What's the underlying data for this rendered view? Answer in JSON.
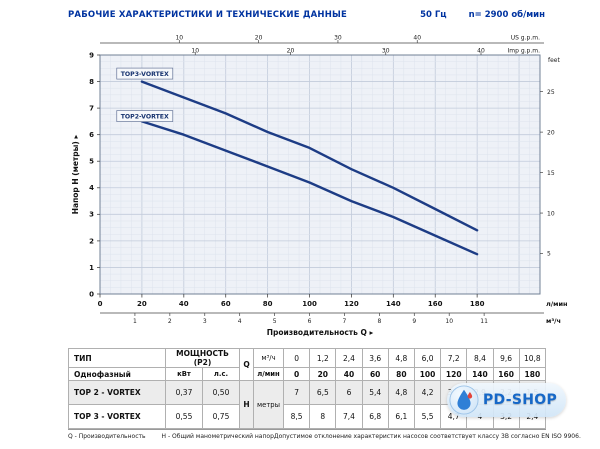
{
  "header": {
    "title": "РАБОЧИЕ ХАРАКТЕРИСТИКИ И ТЕХНИЧЕСКИЕ ДАННЫЕ",
    "frequency": "50 Гц",
    "speed": "n= 2900 об/мин"
  },
  "chart_data": {
    "type": "line",
    "x_lmin": [
      0,
      20,
      40,
      60,
      80,
      100,
      120,
      140,
      160,
      180
    ],
    "series": [
      {
        "name": "TOP3-VORTEX",
        "values": [
          8.5,
          8,
          7.4,
          6.8,
          6.1,
          5.5,
          4.7,
          4,
          3.2,
          2.4
        ],
        "label_at": [
          8,
          8.3
        ]
      },
      {
        "name": "TOP2-VORTEX",
        "values": [
          7,
          6.5,
          6,
          5.4,
          4.8,
          4.2,
          3.5,
          2.9,
          2.2,
          1.5
        ],
        "label_at": [
          8,
          6.7
        ]
      }
    ],
    "curve_start_index": 1,
    "xlabel": "Производительность Q",
    "ylabel": "Напор H (метры)",
    "xlim": [
      0,
      210
    ],
    "ylim": [
      0,
      9
    ],
    "grid": true,
    "curve_color": "#1d3c85",
    "axes": {
      "lmin": {
        "label": "л/мин",
        "ticks": [
          0,
          20,
          40,
          60,
          80,
          100,
          120,
          140,
          160,
          180
        ]
      },
      "m3h": {
        "label": "м³/ч",
        "ticks": [
          1,
          2,
          3,
          4,
          5,
          6,
          7,
          8,
          9,
          10,
          11
        ],
        "to_lmin": 16.6667
      },
      "us_gpm": {
        "label": "US g.p.m.",
        "ticks": [
          10,
          20,
          30,
          40
        ],
        "to_lmin": 3.78541
      },
      "imp_gpm": {
        "label": "Imp g.p.m.",
        "ticks": [
          10,
          20,
          30,
          40
        ],
        "to_lmin": 4.54609
      },
      "meters": {
        "ticks": [
          0,
          1,
          2,
          3,
          4,
          5,
          6,
          7,
          8,
          9
        ]
      },
      "feet": {
        "label": "feet",
        "ticks": [
          5,
          10,
          15,
          20,
          25
        ],
        "to_m": 0.3048
      }
    }
  },
  "table": {
    "type_header": "ТИП",
    "power_header": "МОЩНОСТЬ (P2)",
    "phase_label": "Однофазный",
    "kw_label": "кВт",
    "hp_label": "л.с.",
    "q_label": "Q",
    "h_label": "H",
    "q_unit_m3h": "м³/ч",
    "q_unit_lmin": "л/мин",
    "h_unit": "метры",
    "q_m3h": [
      "0",
      "1,2",
      "2,4",
      "3,6",
      "4,8",
      "6,0",
      "7,2",
      "8,4",
      "9,6",
      "10,8"
    ],
    "q_lmin": [
      "0",
      "20",
      "40",
      "60",
      "80",
      "100",
      "120",
      "140",
      "160",
      "180"
    ],
    "rows": [
      {
        "model": "TOP 2 - VORTEX",
        "kw": "0,37",
        "hp": "0,50",
        "h": [
          "7",
          "6,5",
          "6",
          "5,4",
          "4,8",
          "4,2",
          "3,5",
          "2,9",
          "2,2",
          "1,5"
        ]
      },
      {
        "model": "TOP 3 - VORTEX",
        "kw": "0,55",
        "hp": "0,75",
        "h": [
          "8,5",
          "8",
          "7,4",
          "6,8",
          "6,1",
          "5,5",
          "4,7",
          "4",
          "3,2",
          "2,4"
        ]
      }
    ]
  },
  "footnotes": {
    "q_note": "Q - Производительность",
    "h_note": "H - Общий манометрический напор",
    "tolerance": "Допустимое отклонение характеристик насосов соответствует классу 3B согласно EN ISO 9906."
  },
  "logo": {
    "text": "PD-SHOP"
  },
  "colors": {
    "accent": "#0033a0",
    "curve": "#1d3c85"
  }
}
